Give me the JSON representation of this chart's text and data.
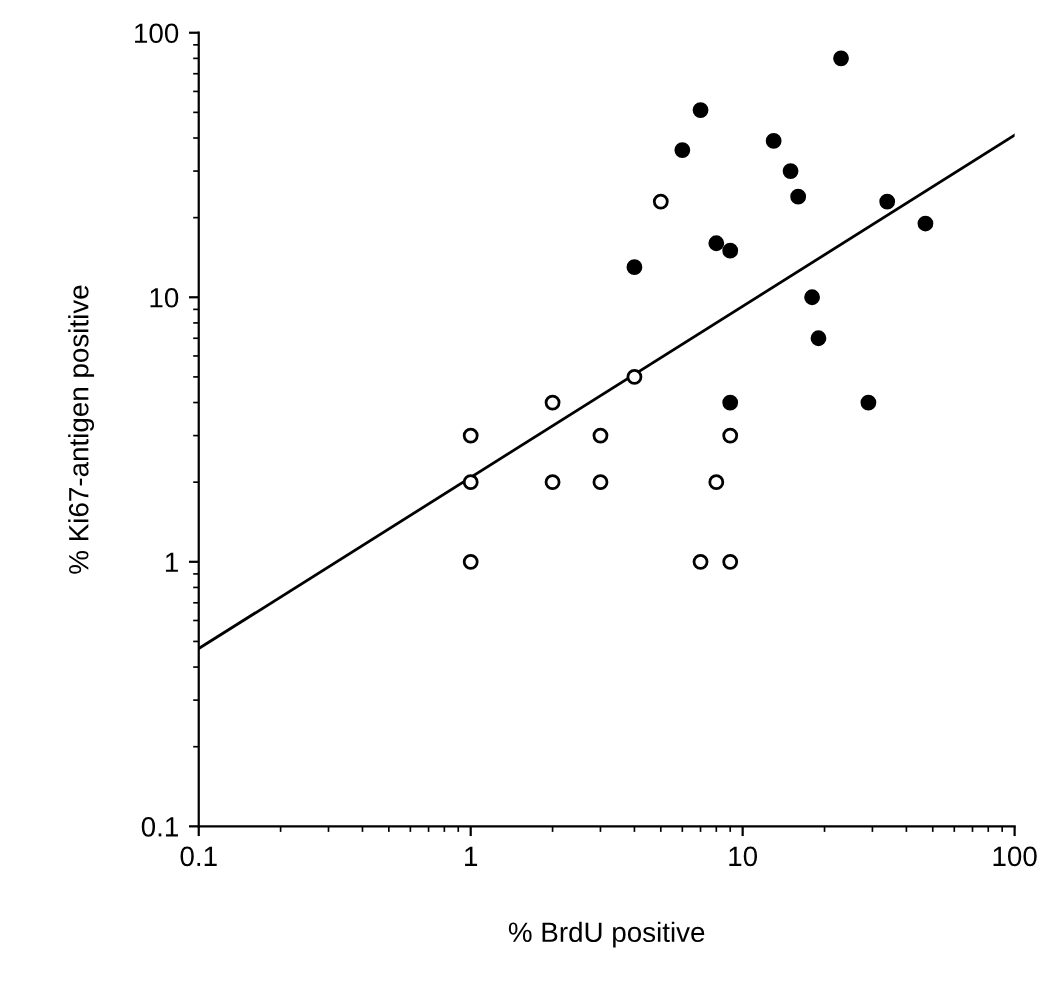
{
  "chart_data": {
    "type": "scatter",
    "xlabel": "% BrdU positive",
    "ylabel": "% Ki67-antigen positive",
    "log": "xy",
    "xlim": [
      0.1,
      100
    ],
    "ylim": [
      0.1,
      100
    ],
    "xticks": [
      0.1,
      1,
      10,
      100
    ],
    "yticks": [
      0.1,
      1,
      10,
      100
    ],
    "grid": false,
    "marker": "circle",
    "series": [
      {
        "color": "#ffffff",
        "x": [
          1,
          1,
          1,
          2,
          2,
          3,
          3,
          4,
          5,
          7,
          8,
          9,
          9
        ],
        "values": [
          3,
          2,
          1,
          4,
          2,
          3,
          2,
          5,
          23,
          1,
          2,
          3,
          1
        ]
      },
      {
        "color": "#000000",
        "x": [
          9,
          4,
          6,
          7,
          8,
          9,
          13,
          15,
          16,
          18,
          19,
          23,
          29,
          34,
          47
        ],
        "values": [
          4,
          13,
          36,
          51,
          16,
          15,
          39,
          30,
          24,
          10,
          7,
          80,
          4,
          23,
          19
        ]
      },
      {
        "type": "line",
        "color": "#000000",
        "marker": "none",
        "x": [
          0.1,
          100
        ],
        "values": [
          0.47,
          41
        ]
      }
    ]
  }
}
